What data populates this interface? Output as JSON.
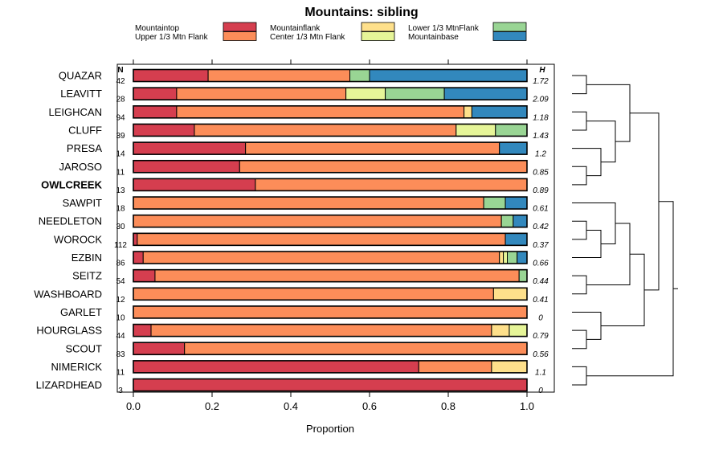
{
  "chart_data": {
    "type": "bar",
    "orientation": "horizontal",
    "stacked": true,
    "title": "Mountains: sibling",
    "xlabel": "Proportion",
    "ylabel": "",
    "xlim": [
      0,
      1
    ],
    "x_ticks": [
      "0.0",
      "0.2",
      "0.4",
      "0.6",
      "0.8",
      "1.0"
    ],
    "n_header": "N",
    "h_header": "H",
    "legend_placement": "top",
    "series": [
      {
        "name": "Mountaintop",
        "color": "#D53E4F"
      },
      {
        "name": "Upper 1/3 Mtn Flank",
        "color": "#FC8D59"
      },
      {
        "name": "Mountainflank",
        "color": "#FEE08B"
      },
      {
        "name": "Center 1/3 Mtn Flank",
        "color": "#E6F598"
      },
      {
        "name": "Lower 1/3 MtnFlank",
        "color": "#99D594"
      },
      {
        "name": "Mountainbase",
        "color": "#3288BD"
      }
    ],
    "rows": [
      {
        "name": "QUAZAR",
        "n": "42",
        "h": "1.72",
        "bold": false,
        "values": [
          0.19,
          0.36,
          0,
          0,
          0.05,
          0.4
        ]
      },
      {
        "name": "LEAVITT",
        "n": "28",
        "h": "2.09",
        "bold": false,
        "values": [
          0.11,
          0.43,
          0,
          0.1,
          0.15,
          0.21
        ]
      },
      {
        "name": "LEIGHCAN",
        "n": "94",
        "h": "1.18",
        "bold": false,
        "values": [
          0.11,
          0.73,
          0.02,
          0,
          0,
          0.14
        ]
      },
      {
        "name": "CLUFF",
        "n": "39",
        "h": "1.43",
        "bold": false,
        "values": [
          0.155,
          0.665,
          0,
          0.1,
          0.08,
          0
        ]
      },
      {
        "name": "PRESA",
        "n": "14",
        "h": "1.2",
        "bold": false,
        "values": [
          0.285,
          0.645,
          0,
          0,
          0,
          0.07
        ]
      },
      {
        "name": "JAROSO",
        "n": "11",
        "h": "0.85",
        "bold": false,
        "values": [
          0.27,
          0.73,
          0,
          0,
          0,
          0
        ]
      },
      {
        "name": "OWLCREEK",
        "n": "13",
        "h": "0.89",
        "bold": true,
        "values": [
          0.31,
          0.69,
          0,
          0,
          0,
          0
        ]
      },
      {
        "name": "SAWPIT",
        "n": "18",
        "h": "0.61",
        "bold": false,
        "values": [
          0,
          0.89,
          0,
          0,
          0.055,
          0.055
        ]
      },
      {
        "name": "NEEDLETON",
        "n": "30",
        "h": "0.42",
        "bold": false,
        "values": [
          0,
          0.935,
          0,
          0,
          0.03,
          0.035
        ]
      },
      {
        "name": "WOROCK",
        "n": "112",
        "h": "0.37",
        "bold": false,
        "values": [
          0.01,
          0.935,
          0,
          0,
          0,
          0.055
        ]
      },
      {
        "name": "EZBIN",
        "n": "86",
        "h": "0.66",
        "bold": false,
        "values": [
          0.025,
          0.905,
          0.01,
          0.01,
          0.025,
          0.025
        ]
      },
      {
        "name": "SEITZ",
        "n": "54",
        "h": "0.44",
        "bold": false,
        "values": [
          0.055,
          0.925,
          0,
          0,
          0.02,
          0
        ]
      },
      {
        "name": "WASHBOARD",
        "n": "12",
        "h": "0.41",
        "bold": false,
        "values": [
          0,
          0.915,
          0.085,
          0,
          0,
          0
        ]
      },
      {
        "name": "GARLET",
        "n": "10",
        "h": "0",
        "bold": false,
        "values": [
          0,
          1.0,
          0,
          0,
          0,
          0
        ]
      },
      {
        "name": "HOURGLASS",
        "n": "44",
        "h": "0.79",
        "bold": false,
        "values": [
          0.045,
          0.865,
          0.045,
          0.045,
          0,
          0
        ]
      },
      {
        "name": "SCOUT",
        "n": "83",
        "h": "0.56",
        "bold": false,
        "values": [
          0.13,
          0.87,
          0,
          0,
          0,
          0
        ]
      },
      {
        "name": "NIMERICK",
        "n": "11",
        "h": "1.1",
        "bold": false,
        "values": [
          0.725,
          0.185,
          0.09,
          0,
          0,
          0
        ]
      },
      {
        "name": "LIZARDHEAD",
        "n": "3",
        "h": "0",
        "bold": false,
        "values": [
          1.0,
          0,
          0,
          0,
          0,
          0
        ]
      }
    ],
    "dendrogram": {
      "tree": [
        [
          [
            [
              "QUAZAR",
              "LEAVITT"
            ],
            [
              [
                "LEIGHCAN",
                "CLUFF"
              ],
              [
                "PRESA",
                [
                  "JAROSO",
                  "OWLCREEK"
                ]
              ]
            ]
          ],
          [
            [
              [
                "SAWPIT",
                [
                  [
                    "NEEDLETON",
                    "WOROCK"
                  ],
                  "EZBIN"
                ]
              ],
              [
                "SEITZ",
                "WASHBOARD"
              ]
            ],
            [
              "GARLET",
              [
                "HOURGLASS",
                "SCOUT"
              ]
            ]
          ]
        ],
        [
          "NIMERICK",
          "LIZARDHEAD"
        ]
      ]
    }
  }
}
